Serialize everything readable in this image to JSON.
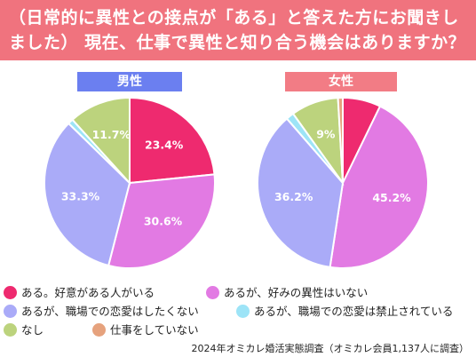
{
  "header": {
    "line1": "（日常的に異性との接点が「ある」と答えた方にお聞きし",
    "line2": "ました） 現在、仕事で異性と知り合う機会はありますか？"
  },
  "colors": {
    "header_bg": "#f0737e",
    "male_label_bg": "#6b7ff0",
    "female_label_bg": "#f27c85",
    "cat0": "#ee2a6f",
    "cat1": "#e27ae3",
    "cat2": "#aaabf8",
    "cat3": "#9de4f7",
    "cat4": "#bcd37d",
    "cat5": "#e6a27d"
  },
  "legend": [
    "ある。好意がある人がいる",
    "あるが、好みの異性はいない",
    "あるが、職場での恋愛はしたくない",
    "あるが、職場での恋愛は禁止されている",
    "なし",
    "仕事をしていない"
  ],
  "footer": "2024年オミカレ婚活実態調査（オミカレ会員1,137人に調査）",
  "chart_data": [
    {
      "type": "pie",
      "title": "男性",
      "categories": [
        "ある。好意がある人がいる",
        "あるが、好みの異性はいない",
        "あるが、職場での恋愛はしたくない",
        "あるが、職場での恋愛は禁止されている",
        "なし",
        "仕事をしていない"
      ],
      "values": [
        23.4,
        30.6,
        33.3,
        1.0,
        11.7,
        0.0
      ],
      "labels": [
        "23.4%",
        "30.6%",
        "33.3%",
        "",
        "11.7%",
        ""
      ]
    },
    {
      "type": "pie",
      "title": "女性",
      "categories": [
        "ある。好意がある人がいる",
        "あるが、好みの異性はいない",
        "あるが、職場での恋愛はしたくない",
        "あるが、職場での恋愛は禁止されている",
        "なし",
        "仕事をしていない"
      ],
      "values": [
        7.2,
        45.2,
        36.2,
        1.5,
        9.0,
        0.9
      ],
      "labels": [
        "",
        "45.2%",
        "36.2%",
        "",
        "9%",
        ""
      ]
    }
  ]
}
